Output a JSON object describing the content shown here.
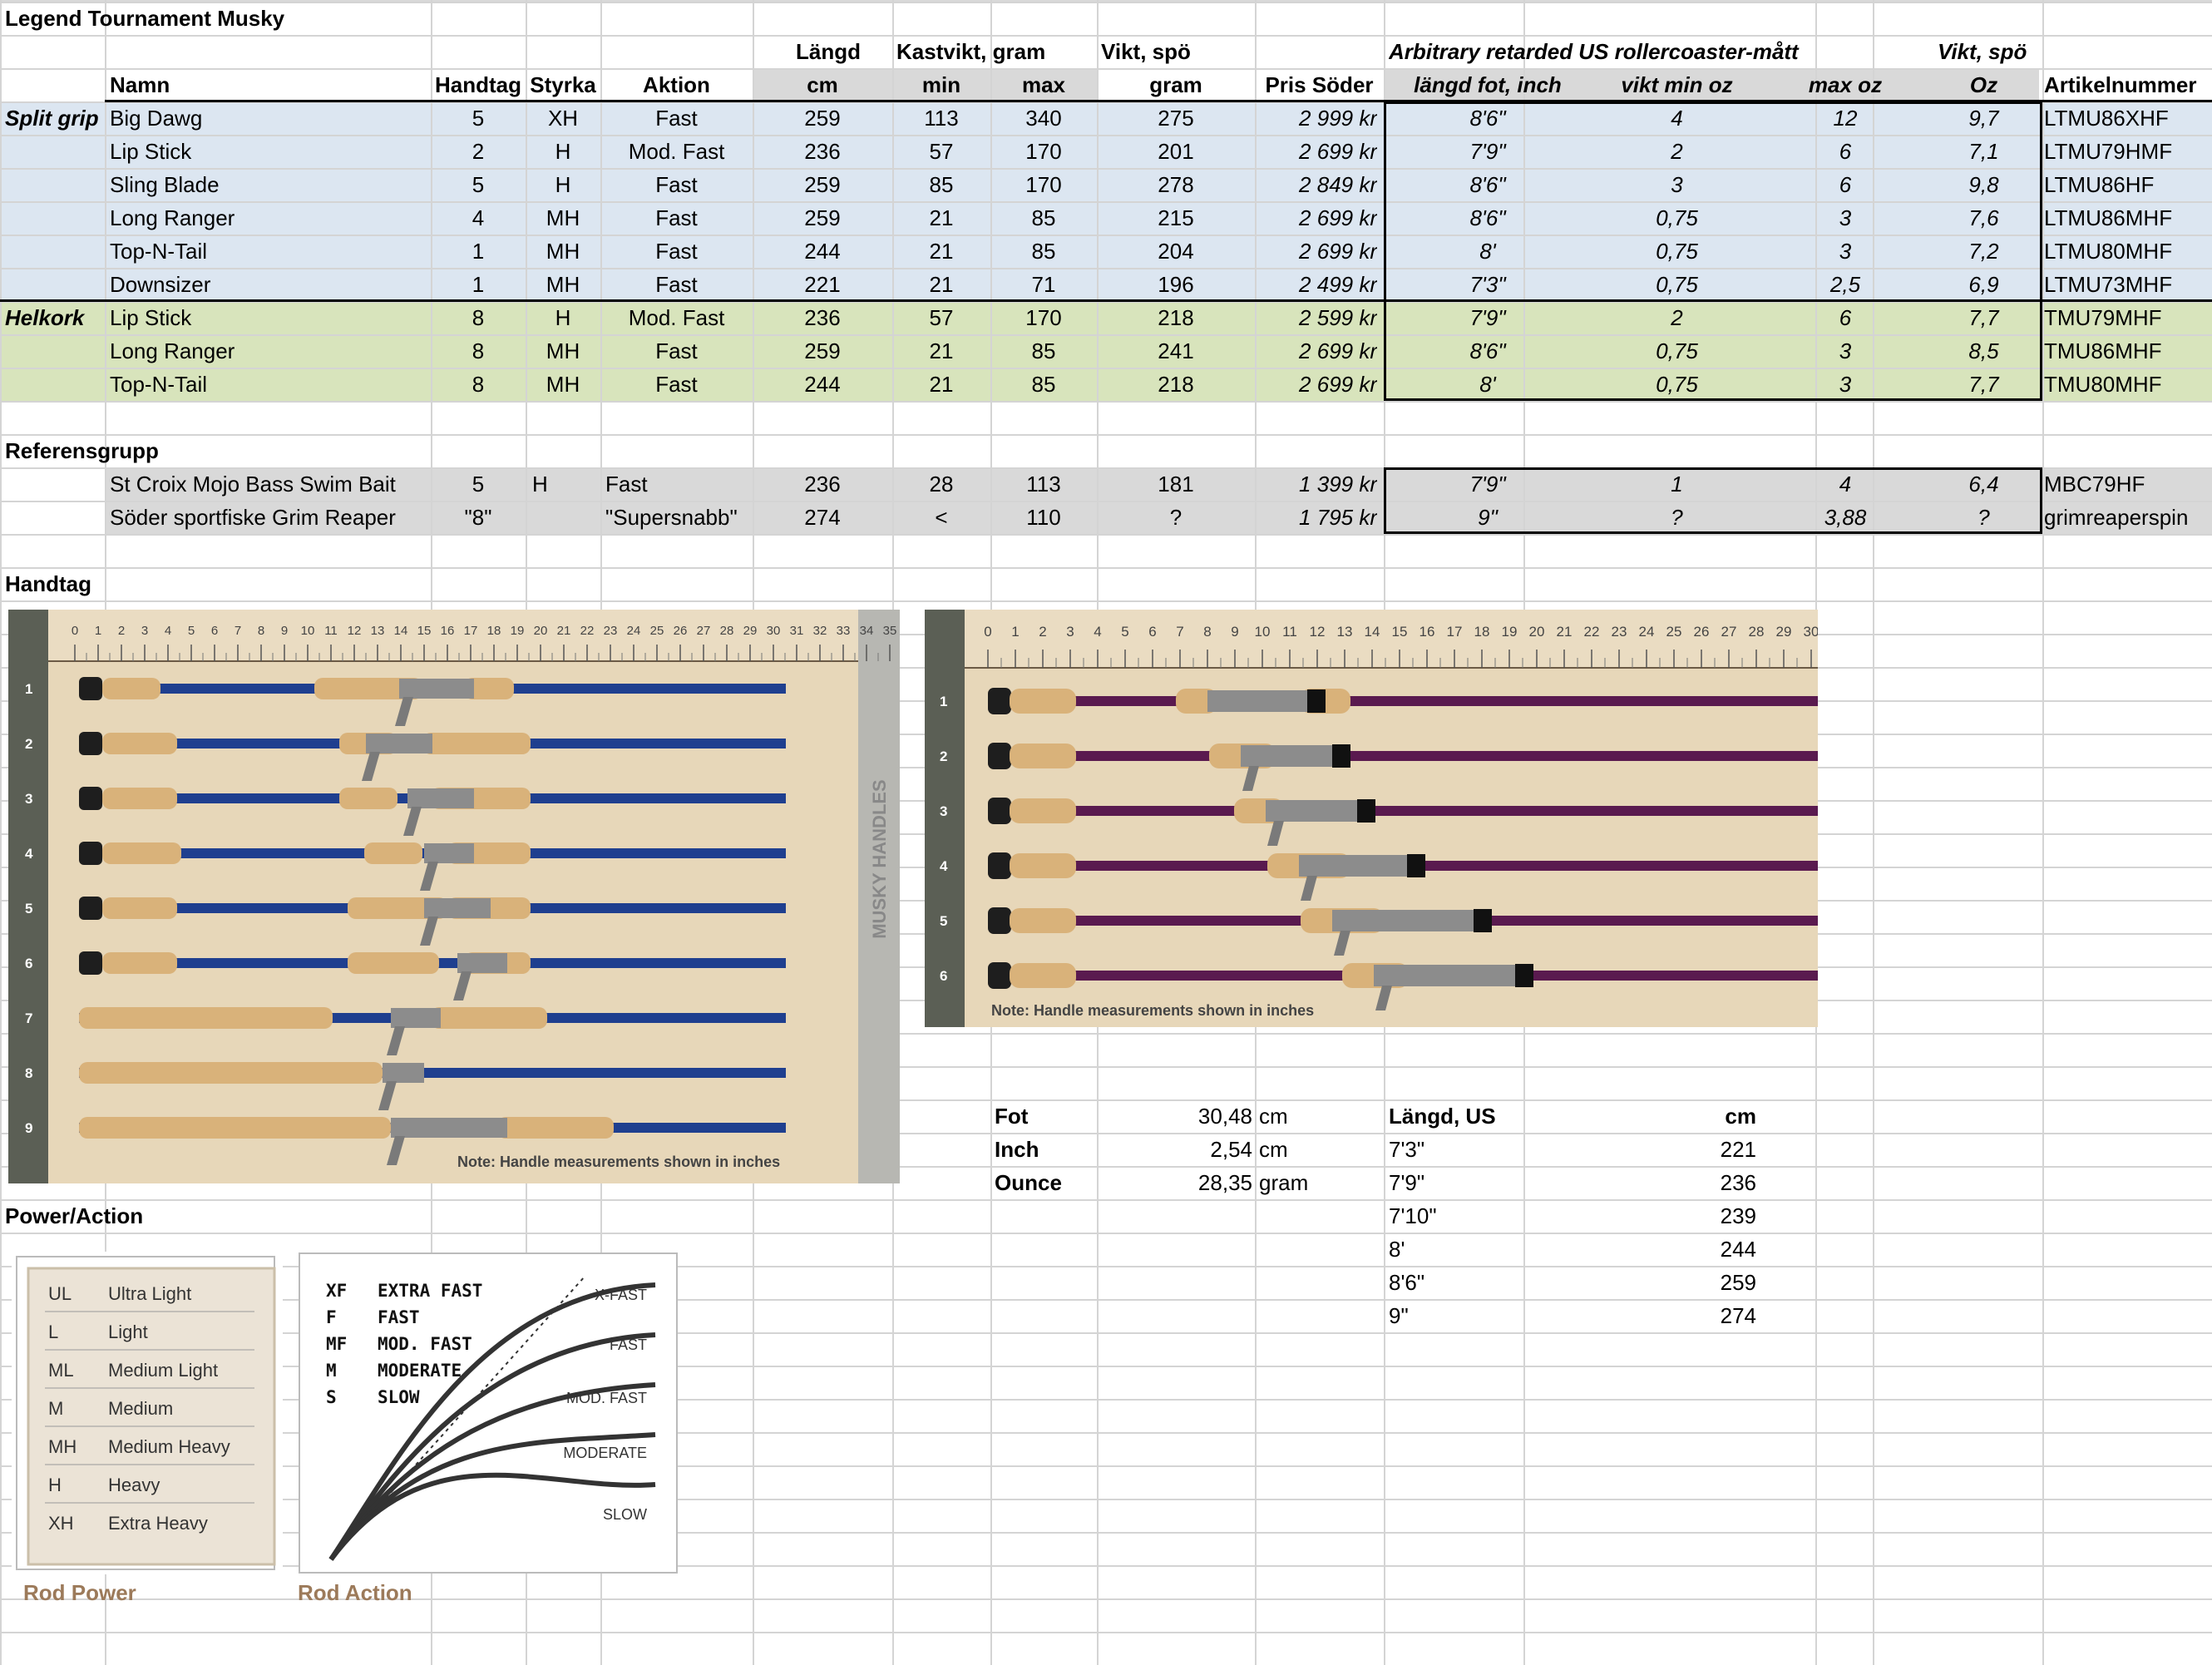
{
  "title": "Legend Tournament Musky",
  "groups": {
    "langd": "Längd",
    "kastvikt": "Kastvikt, gram",
    "vikt": "Vikt, spö",
    "arb": "Arbitrary retarded US rollercoaster-mått",
    "vikt2": "Vikt, spö"
  },
  "headers": {
    "namn": "Namn",
    "handtag": "Handtag",
    "styrka": "Styrka",
    "aktion": "Aktion",
    "cm": "cm",
    "min": "min",
    "max": "max",
    "gram": "gram",
    "pris": "Pris Söder",
    "fot": "längd fot, inch",
    "vmin": "vikt min oz",
    "vmax": "max oz",
    "oz": "Oz",
    "art": "Artikelnummer"
  },
  "sections": {
    "split": "Split grip",
    "helkork": "Helkork",
    "ref": "Referensgrupp",
    "handtag": "Handtag",
    "power": "Power/Action"
  },
  "rows": [
    [
      "Big Dawg",
      "5",
      "XH",
      "Fast",
      "259",
      "113",
      "340",
      "275",
      "2 999 kr",
      "8'6\"",
      "4",
      "12",
      "9,7",
      "LTMU86XHF"
    ],
    [
      "Lip Stick",
      "2",
      "H",
      "Mod. Fast",
      "236",
      "57",
      "170",
      "201",
      "2 699 kr",
      "7'9\"",
      "2",
      "6",
      "7,1",
      "LTMU79HMF"
    ],
    [
      "Sling Blade",
      "5",
      "H",
      "Fast",
      "259",
      "85",
      "170",
      "278",
      "2 849 kr",
      "8'6\"",
      "3",
      "6",
      "9,8",
      "LTMU86HF"
    ],
    [
      "Long Ranger",
      "4",
      "MH",
      "Fast",
      "259",
      "21",
      "85",
      "215",
      "2 699 kr",
      "8'6\"",
      "0,75",
      "3",
      "7,6",
      "LTMU86MHF"
    ],
    [
      "Top-N-Tail",
      "1",
      "MH",
      "Fast",
      "244",
      "21",
      "85",
      "204",
      "2 699 kr",
      "8'",
      "0,75",
      "3",
      "7,2",
      "LTMU80MHF"
    ],
    [
      "Downsizer",
      "1",
      "MH",
      "Fast",
      "221",
      "21",
      "71",
      "196",
      "2 499 kr",
      "7'3\"",
      "0,75",
      "2,5",
      "6,9",
      "LTMU73MHF"
    ],
    [
      "Lip Stick",
      "8",
      "H",
      "Mod. Fast",
      "236",
      "57",
      "170",
      "218",
      "2 599 kr",
      "7'9\"",
      "2",
      "6",
      "7,7",
      "TMU79MHF"
    ],
    [
      "Long Ranger",
      "8",
      "MH",
      "Fast",
      "259",
      "21",
      "85",
      "241",
      "2 699 kr",
      "8'6\"",
      "0,75",
      "3",
      "8,5",
      "TMU86MHF"
    ],
    [
      "Top-N-Tail",
      "8",
      "MH",
      "Fast",
      "244",
      "21",
      "85",
      "218",
      "2 699 kr",
      "8'",
      "0,75",
      "3",
      "7,7",
      "TMU80MHF"
    ]
  ],
  "ref": [
    [
      "St Croix Mojo Bass Swim Bait",
      "5",
      "H",
      "Fast",
      "236",
      "28",
      "113",
      "181",
      "1 399 kr",
      "7'9\"",
      "1",
      "4",
      "6,4",
      "MBC79HF"
    ],
    [
      "Söder sportfiske Grim Reaper",
      "\"8\"",
      "",
      "\"Supersnabb\"",
      "274",
      "<",
      "110",
      "?",
      "1 795 kr",
      "9\"",
      "?",
      "3,88",
      "?",
      "grimreaperspin"
    ]
  ],
  "conv": [
    [
      "Fot",
      "30,48",
      "cm"
    ],
    [
      "Inch",
      "2,54",
      "cm"
    ],
    [
      "Ounce",
      "28,35",
      "gram"
    ]
  ],
  "us": {
    "h1": "Längd, US",
    "h2": "cm",
    "rows": [
      [
        "7'3\"",
        "221"
      ],
      [
        "7'9\"",
        "236"
      ],
      [
        "7'10\"",
        "239"
      ],
      [
        "8'",
        "244"
      ],
      [
        "8'6\"",
        "259"
      ],
      [
        "9\"",
        "274"
      ]
    ]
  },
  "img1": {
    "side": "MUSKY HANDLES",
    "note": "Note: Handle measurements shown in inches",
    "ticks": [
      "0",
      "1",
      "2",
      "3",
      "4",
      "5",
      "6",
      "7",
      "8",
      "9",
      "10",
      "11",
      "12",
      "13",
      "14",
      "15",
      "16",
      "17",
      "18",
      "19",
      "20",
      "21",
      "22",
      "23",
      "24",
      "25",
      "26",
      "27",
      "28",
      "29",
      "30",
      "31",
      "32",
      "33",
      "34",
      "35"
    ],
    "rows": [
      "1",
      "2",
      "3",
      "4",
      "5",
      "6",
      "7",
      "8",
      "9"
    ]
  },
  "img2": {
    "note": "Note: Handle measurements shown in inches",
    "ticks": [
      "0",
      "1",
      "2",
      "3",
      "4",
      "5",
      "6",
      "7",
      "8",
      "9",
      "10",
      "11",
      "12",
      "13",
      "14",
      "15",
      "16",
      "17",
      "18",
      "19",
      "20",
      "21",
      "22",
      "23",
      "24",
      "25",
      "26",
      "27",
      "28",
      "29",
      "30"
    ],
    "rows": [
      "1",
      "2",
      "3",
      "4",
      "5",
      "6"
    ]
  },
  "power": {
    "caption": "Rod Power",
    "items": [
      [
        "UL",
        "Ultra Light"
      ],
      [
        "L",
        "Light"
      ],
      [
        "ML",
        "Medium Light"
      ],
      [
        "M",
        "Medium"
      ],
      [
        "MH",
        "Medium Heavy"
      ],
      [
        "H",
        "Heavy"
      ],
      [
        "XH",
        "Extra Heavy"
      ]
    ]
  },
  "action": {
    "caption": "Rod Action",
    "items": [
      [
        "XF",
        "EXTRA FAST"
      ],
      [
        "F",
        "FAST"
      ],
      [
        "MF",
        "MOD. FAST"
      ],
      [
        "M",
        "MODERATE"
      ],
      [
        "S",
        "SLOW"
      ]
    ],
    "curves": [
      "X-FAST",
      "FAST",
      "MOD. FAST",
      "MODERATE",
      "SLOW"
    ]
  },
  "colors": {
    "blue": "#dce6f1",
    "green": "#d8e4bc",
    "gray": "#d9d9d9",
    "rodBlue": "#1f3f8f",
    "rodPurple": "#5a1a4f",
    "cork": "#d9b27a"
  }
}
